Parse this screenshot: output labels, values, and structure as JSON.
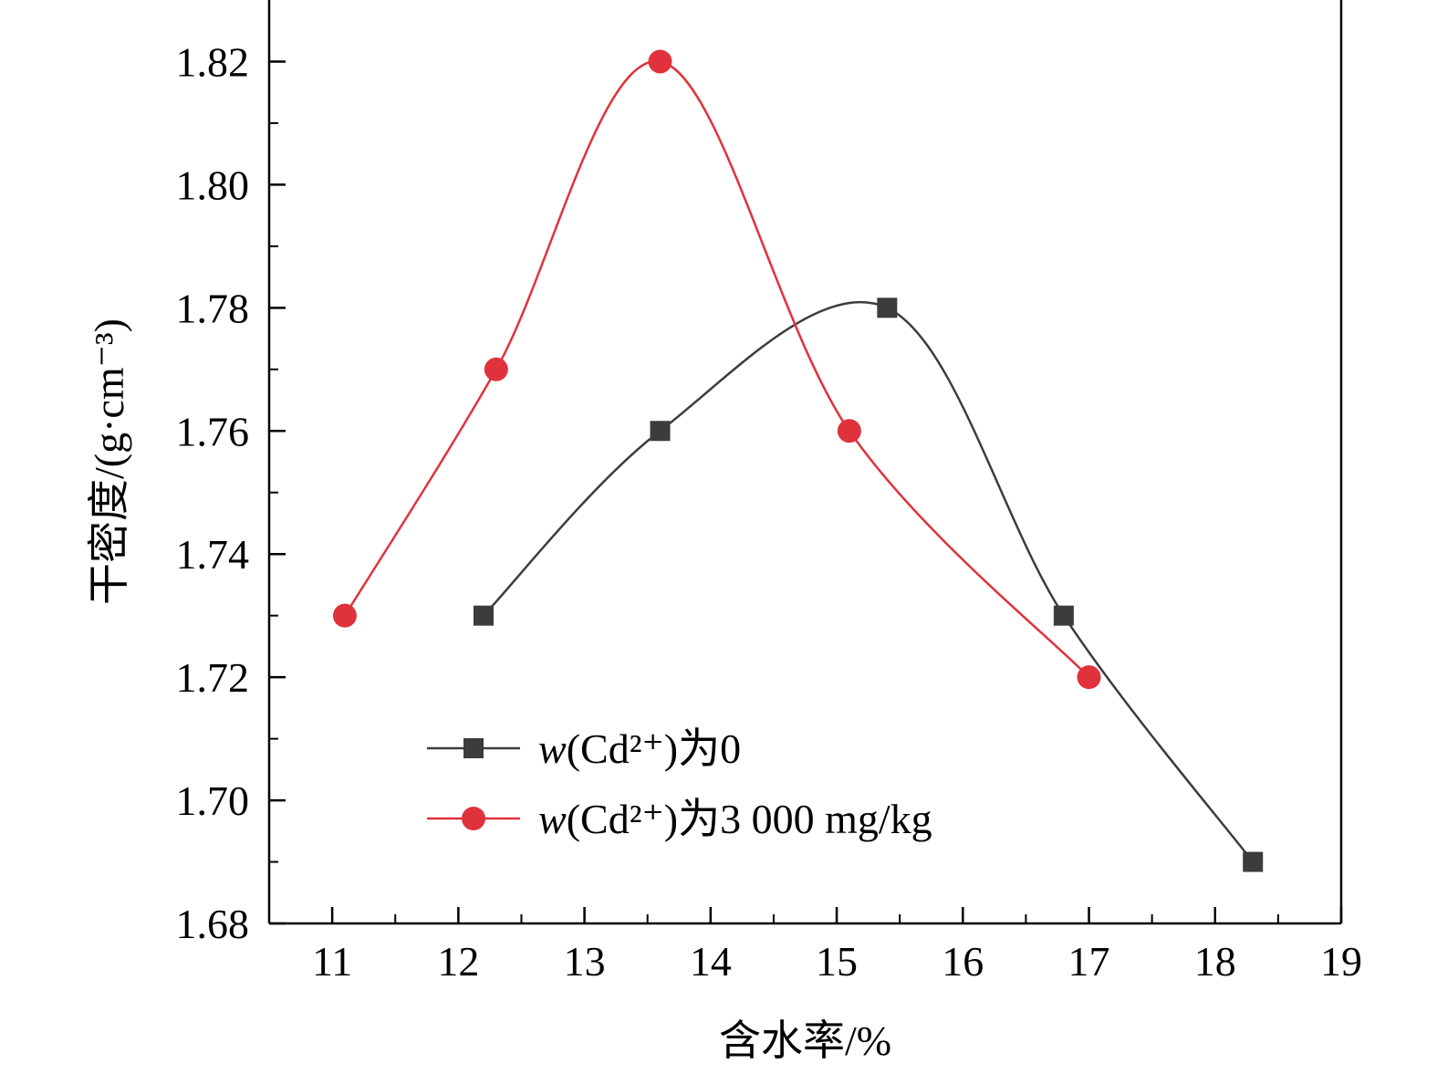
{
  "chart_data": {
    "type": "line",
    "xlabel": "含水率/%",
    "ylabel": "干密度/(g·cm⁻³)",
    "xlim": [
      10.5,
      19
    ],
    "ylim": [
      1.68,
      1.83
    ],
    "x_ticks": [
      11,
      12,
      13,
      14,
      15,
      16,
      17,
      18,
      19
    ],
    "y_ticks": [
      1.68,
      1.7,
      1.72,
      1.74,
      1.76,
      1.78,
      1.8,
      1.82
    ],
    "x_tick_labels": [
      "11",
      "12",
      "13",
      "14",
      "15",
      "16",
      "17",
      "18",
      "19"
    ],
    "y_tick_labels": [
      "1.68",
      "1.70",
      "1.72",
      "1.74",
      "1.76",
      "1.78",
      "1.80",
      "1.82"
    ],
    "legend_position": "lower-left",
    "series": [
      {
        "name": "w(Cd²⁺)为0",
        "legend_var": "w",
        "legend_rest": "(Cd²⁺)为0",
        "marker": "square",
        "color": "#3c3c3c",
        "x": [
          12.2,
          13.6,
          15.4,
          16.8,
          18.3
        ],
        "y": [
          1.73,
          1.76,
          1.78,
          1.73,
          1.69
        ]
      },
      {
        "name": "w(Cd²⁺)为3 000 mg/kg",
        "legend_var": "w",
        "legend_rest": "(Cd²⁺)为3 000 mg/kg",
        "marker": "circle",
        "color": "#e0323c",
        "x": [
          11.1,
          12.3,
          13.6,
          15.1,
          17.0
        ],
        "y": [
          1.73,
          1.77,
          1.82,
          1.76,
          1.72
        ]
      }
    ]
  }
}
